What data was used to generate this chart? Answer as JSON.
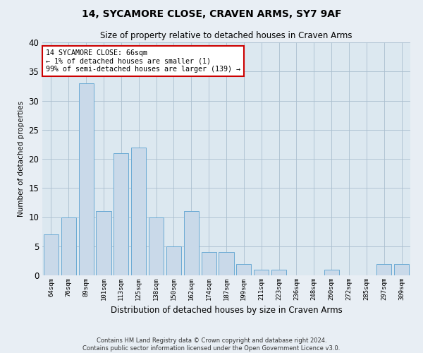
{
  "title": "14, SYCAMORE CLOSE, CRAVEN ARMS, SY7 9AF",
  "subtitle": "Size of property relative to detached houses in Craven Arms",
  "xlabel": "Distribution of detached houses by size in Craven Arms",
  "ylabel": "Number of detached properties",
  "categories": [
    "64sqm",
    "76sqm",
    "89sqm",
    "101sqm",
    "113sqm",
    "125sqm",
    "138sqm",
    "150sqm",
    "162sqm",
    "174sqm",
    "187sqm",
    "199sqm",
    "211sqm",
    "223sqm",
    "236sqm",
    "248sqm",
    "260sqm",
    "272sqm",
    "285sqm",
    "297sqm",
    "309sqm"
  ],
  "values": [
    7,
    10,
    33,
    11,
    21,
    22,
    10,
    5,
    11,
    4,
    4,
    2,
    1,
    1,
    0,
    0,
    1,
    0,
    0,
    2,
    2
  ],
  "bar_color": "#c9d9e9",
  "bar_edge_color": "#6aaad4",
  "highlight_edge_color": "#cc0000",
  "annotation_text": "14 SYCAMORE CLOSE: 66sqm\n← 1% of detached houses are smaller (1)\n99% of semi-detached houses are larger (139) →",
  "annotation_box_color": "#ffffff",
  "annotation_box_edge_color": "#cc0000",
  "ylim": [
    0,
    40
  ],
  "yticks": [
    0,
    5,
    10,
    15,
    20,
    25,
    30,
    35,
    40
  ],
  "grid_color": "#aabfcf",
  "plot_bg_color": "#dce8f0",
  "fig_bg_color": "#e8eef4",
  "footer_line1": "Contains HM Land Registry data © Crown copyright and database right 2024.",
  "footer_line2": "Contains public sector information licensed under the Open Government Licence v3.0."
}
